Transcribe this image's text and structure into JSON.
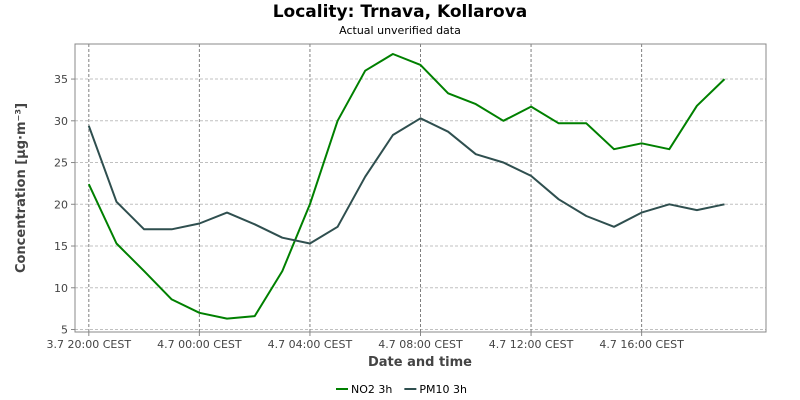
{
  "chart_data": {
    "type": "line",
    "title": "Locality: Trnava, Kollarova",
    "subtitle": "Actual unverified data",
    "xlabel": "Date and time",
    "ylabel": "Concentration [µg·m⁻³]",
    "ylim": [
      4.7,
      39.2
    ],
    "yticks": [
      5,
      10,
      15,
      20,
      25,
      30,
      35
    ],
    "xlim": [
      "2018-07-03 19:30",
      "2018-07-04 20:30"
    ],
    "xticks": [
      {
        "x": "2018-07-03 20:00",
        "label": "3.7 20:00 CEST"
      },
      {
        "x": "2018-07-04 00:00",
        "label": "4.7 00:00 CEST"
      },
      {
        "x": "2018-07-04 04:00",
        "label": "4.7 04:00 CEST"
      },
      {
        "x": "2018-07-04 08:00",
        "label": "4.7 08:00 CEST"
      },
      {
        "x": "2018-07-04 12:00",
        "label": "4.7 12:00 CEST"
      },
      {
        "x": "2018-07-04 16:00",
        "label": "4.7 16:00 CEST"
      }
    ],
    "grid": true,
    "legend_position": "bottom",
    "x": [
      "2018-07-03 20:00",
      "2018-07-03 21:00",
      "2018-07-03 22:00",
      "2018-07-03 23:00",
      "2018-07-04 00:00",
      "2018-07-04 01:00",
      "2018-07-04 02:00",
      "2018-07-04 03:00",
      "2018-07-04 04:00",
      "2018-07-04 05:00",
      "2018-07-04 06:00",
      "2018-07-04 07:00",
      "2018-07-04 08:00",
      "2018-07-04 09:00",
      "2018-07-04 10:00",
      "2018-07-04 11:00",
      "2018-07-04 12:00",
      "2018-07-04 13:00",
      "2018-07-04 14:00",
      "2018-07-04 15:00",
      "2018-07-04 16:00",
      "2018-07-04 17:00",
      "2018-07-04 18:00",
      "2018-07-04 19:00"
    ],
    "series": [
      {
        "name": "NO2 3h",
        "color": "#008000",
        "values": [
          22.4,
          15.3,
          12.0,
          8.6,
          7.0,
          6.3,
          6.6,
          12.0,
          20.0,
          30.0,
          36.0,
          38.0,
          36.7,
          33.3,
          32.0,
          30.0,
          31.7,
          29.7,
          29.7,
          26.6,
          27.3,
          26.6,
          31.8,
          35.0
        ]
      },
      {
        "name": "PM10 3h",
        "color": "#2f4f4f",
        "values": [
          29.4,
          20.3,
          17.0,
          17.0,
          17.7,
          19.0,
          17.6,
          16.0,
          15.3,
          17.3,
          23.3,
          28.3,
          30.3,
          28.7,
          26.0,
          25.0,
          23.4,
          20.6,
          18.6,
          17.3,
          19.0,
          20.0,
          19.3,
          20.0
        ]
      }
    ]
  }
}
